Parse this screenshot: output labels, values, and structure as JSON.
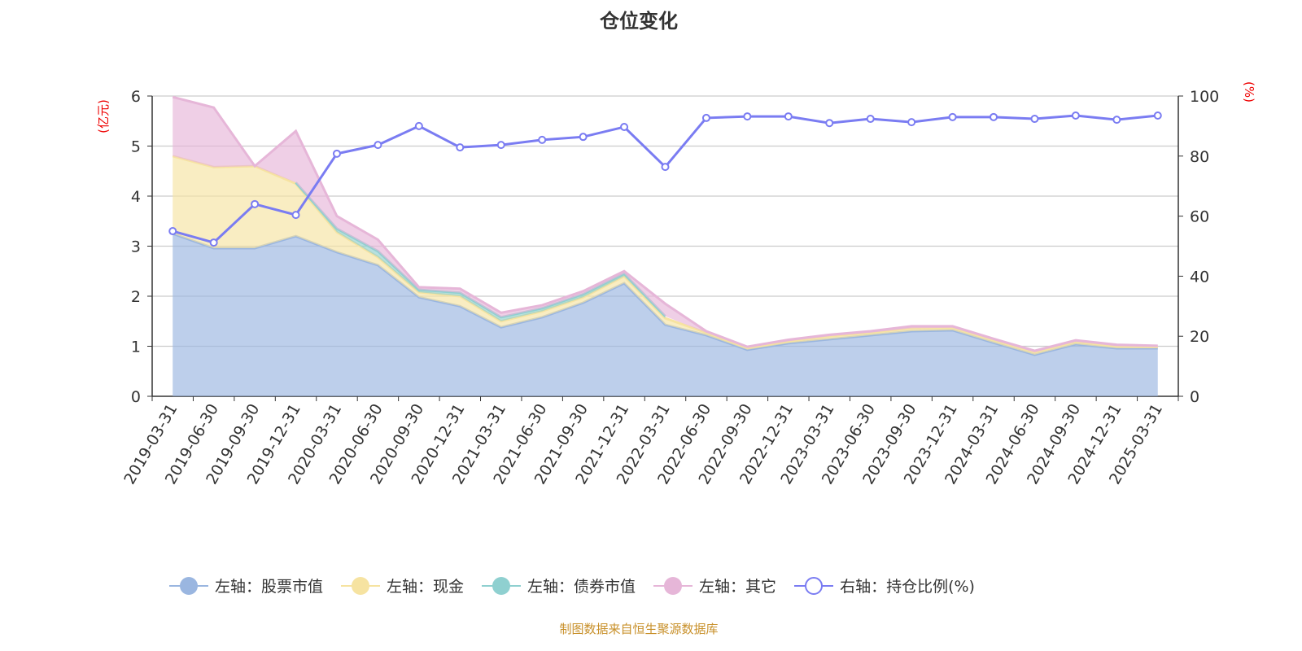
{
  "title": "仓位变化",
  "footer": "制图数据来自恒生聚源数据库",
  "chart_data": {
    "type": "area",
    "title": "仓位变化",
    "y_left_label": "(亿元)",
    "y_right_label": "(%)",
    "y_left_range": [
      0,
      6
    ],
    "y_right_range": [
      0,
      100
    ],
    "y_left_ticks": [
      "0",
      "1",
      "2",
      "3",
      "4",
      "5",
      "6"
    ],
    "y_right_ticks": [
      "0",
      "20",
      "40",
      "60",
      "80",
      "100"
    ],
    "grid": true,
    "legend_position": "bottom",
    "categories": [
      "2019-03-31",
      "2019-06-30",
      "2019-09-30",
      "2019-12-31",
      "2020-03-31",
      "2020-06-30",
      "2020-09-30",
      "2020-12-31",
      "2021-03-31",
      "2021-06-30",
      "2021-09-30",
      "2021-12-31",
      "2022-03-31",
      "2022-06-30",
      "2022-09-30",
      "2022-12-31",
      "2023-03-31",
      "2023-06-30",
      "2023-09-30",
      "2023-12-31",
      "2024-03-31",
      "2024-06-30",
      "2024-09-30",
      "2024-12-31",
      "2025-03-31"
    ],
    "series": [
      {
        "name": "左轴：股票市值",
        "axis": "left",
        "stacked": true,
        "color": "#9ab6e0",
        "values": [
          3.25,
          2.96,
          2.96,
          3.2,
          2.88,
          2.62,
          1.98,
          1.8,
          1.38,
          1.58,
          1.87,
          2.26,
          1.43,
          1.22,
          0.93,
          1.06,
          1.14,
          1.22,
          1.3,
          1.32,
          1.07,
          0.83,
          1.04,
          0.96,
          0.96
        ]
      },
      {
        "name": "左轴：现金",
        "axis": "left",
        "stacked": true,
        "color": "#f6e3a1",
        "values": [
          1.55,
          1.62,
          1.64,
          1.05,
          0.4,
          0.16,
          0.1,
          0.2,
          0.12,
          0.12,
          0.11,
          0.14,
          0.13,
          0.05,
          0.04,
          0.04,
          0.06,
          0.05,
          0.06,
          0.05,
          0.05,
          0.05,
          0.05,
          0.04,
          0.03
        ]
      },
      {
        "name": "左轴：债券市值",
        "axis": "left",
        "stacked": true,
        "color": "#8fd0d0",
        "values": [
          null,
          null,
          null,
          0.02,
          0.07,
          0.12,
          0.05,
          0.07,
          0.08,
          0.06,
          0.06,
          0.05,
          0.04,
          null,
          null,
          null,
          null,
          null,
          null,
          null,
          null,
          null,
          null,
          null,
          null
        ]
      },
      {
        "name": "左轴：其它",
        "axis": "left",
        "stacked": true,
        "color": "#e6b6d8",
        "values": [
          1.18,
          1.19,
          0.0,
          1.03,
          0.25,
          0.23,
          0.05,
          0.08,
          0.09,
          0.06,
          0.06,
          0.05,
          0.25,
          0.03,
          0.02,
          0.03,
          0.03,
          0.03,
          0.04,
          0.03,
          0.03,
          0.03,
          0.03,
          0.03,
          0.02
        ]
      },
      {
        "name": "右轴：持仓比例(%)",
        "axis": "right",
        "type": "line",
        "color": "#7a7cf2",
        "values": [
          55,
          51.2,
          64,
          60.4,
          80.8,
          83.7,
          90,
          82.9,
          83.7,
          85.4,
          86.4,
          89.7,
          76.4,
          92.7,
          93.2,
          93.2,
          91,
          92.4,
          91.3,
          93,
          93,
          92.4,
          93.5,
          92.1,
          93.5
        ]
      }
    ]
  }
}
